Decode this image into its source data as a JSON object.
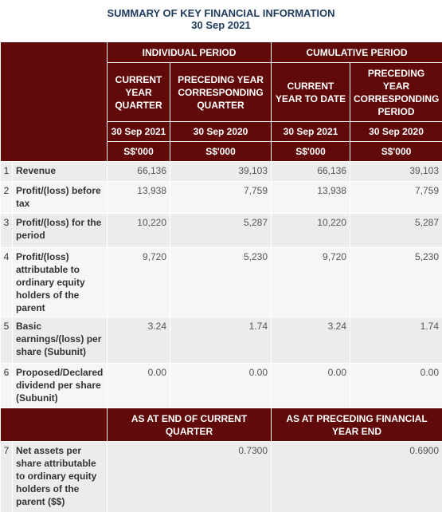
{
  "header": {
    "title": "SUMMARY OF KEY FINANCIAL INFORMATION",
    "date": "30 Sep 2021"
  },
  "table": {
    "groups": [
      "INDIVIDUAL PERIOD",
      "CUMULATIVE PERIOD"
    ],
    "columns": [
      "CURRENT YEAR QUARTER",
      "PRECEDING YEAR CORRESPONDING QUARTER",
      "CURRENT YEAR TO DATE",
      "PRECEDING YEAR CORRESPONDING PERIOD"
    ],
    "dates": [
      "30 Sep 2021",
      "30 Sep 2020",
      "30 Sep 2021",
      "30 Sep 2020"
    ],
    "units": [
      "S$'000",
      "S$'000",
      "S$'000",
      "S$'000"
    ],
    "rows": [
      {
        "no": "1",
        "label": "Revenue",
        "values": [
          "66,136",
          "39,103",
          "66,136",
          "39,103"
        ]
      },
      {
        "no": "2",
        "label": "Profit/(loss) before tax",
        "values": [
          "13,938",
          "7,759",
          "13,938",
          "7,759"
        ]
      },
      {
        "no": "3",
        "label": "Profit/(loss) for the period",
        "values": [
          "10,220",
          "5,287",
          "10,220",
          "5,287"
        ]
      },
      {
        "no": "4",
        "label": "Profit/(loss) attributable to ordinary equity holders of the parent",
        "values": [
          "9,720",
          "5,230",
          "9,720",
          "5,230"
        ]
      },
      {
        "no": "5",
        "label": "Basic earnings/(loss) per share (Subunit)",
        "values": [
          "3.24",
          "1.74",
          "3.24",
          "1.74"
        ]
      },
      {
        "no": "6",
        "label": "Proposed/Declared dividend per share (Subunit)",
        "values": [
          "0.00",
          "0.00",
          "0.00",
          "0.00"
        ]
      }
    ]
  },
  "net_assets": {
    "columns": [
      "AS AT END OF CURRENT QUARTER",
      "AS AT PRECEDING FINANCIAL YEAR END"
    ],
    "row": {
      "no": "7",
      "label": "Net assets per share attributable to ordinary equity holders of the parent ($$)",
      "values": [
        "0.7300",
        "0.6900"
      ]
    }
  }
}
